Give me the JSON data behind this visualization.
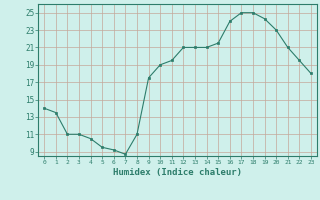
{
  "x": [
    0,
    1,
    2,
    3,
    4,
    5,
    6,
    7,
    8,
    9,
    10,
    11,
    12,
    13,
    14,
    15,
    16,
    17,
    18,
    19,
    20,
    21,
    22,
    23
  ],
  "y": [
    14,
    13.5,
    11,
    11,
    10.5,
    9.5,
    9.2,
    8.7,
    11,
    17.5,
    19,
    19.5,
    21,
    21,
    21,
    21.5,
    24,
    25,
    25,
    24.3,
    23,
    21,
    19.5,
    18
  ],
  "line_color": "#2d7d6b",
  "marker_color": "#2d7d6b",
  "bg_color": "#cff0eb",
  "grid_major_color": "#b8b8b8",
  "grid_minor_color": "#dde8e6",
  "xlabel": "Humidex (Indice chaleur)",
  "ylim": [
    8.5,
    26
  ],
  "xlim": [
    -0.5,
    23.5
  ],
  "yticks": [
    9,
    11,
    13,
    15,
    17,
    19,
    21,
    23,
    25
  ],
  "xticks": [
    0,
    1,
    2,
    3,
    4,
    5,
    6,
    7,
    8,
    9,
    10,
    11,
    12,
    13,
    14,
    15,
    16,
    17,
    18,
    19,
    20,
    21,
    22,
    23
  ]
}
